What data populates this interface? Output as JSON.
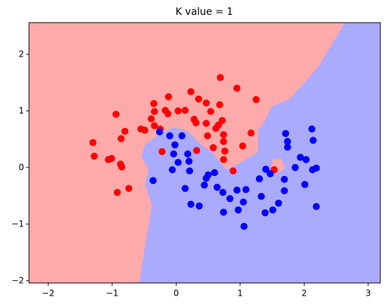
{
  "chart_data": {
    "type": "scatter",
    "title": "K value = 1",
    "xlim": [
      -2.3,
      3.19
    ],
    "ylim": [
      -2.04,
      2.56
    ],
    "xticks": [
      {
        "value": -2,
        "label": "−2"
      },
      {
        "value": -1,
        "label": "−1"
      },
      0,
      1,
      2,
      3
    ],
    "yticks": [
      {
        "value": -2,
        "label": "−2"
      },
      {
        "value": -1,
        "label": "−1"
      },
      0,
      1,
      2
    ],
    "grid": false,
    "series": [
      {
        "color": "#ff0000",
        "x": [
          -1.3,
          -1.28,
          -1.06,
          -1.01,
          -0.94,
          -0.87,
          -0.85,
          -0.74,
          -0.92,
          -0.8,
          -0.86,
          -0.55,
          -0.49,
          -0.39,
          -0.35,
          -0.34,
          -0.34,
          -0.25,
          -0.17,
          -0.13,
          -0.12,
          0.03,
          0.14,
          0.23,
          0.28,
          0.31,
          0.35,
          0.32,
          0.47,
          0.54,
          0.49,
          0.58,
          0.62,
          0.68,
          0.72,
          0.66,
          0.74,
          0.74,
          0.76,
          0.74,
          0.89,
          0.69,
          0.95,
          1.17,
          1.04,
          1.25,
          1.53,
          -0.22,
          0.47
        ],
        "y": [
          0.44,
          0.2,
          0.14,
          0.16,
          0.94,
          0.06,
          0.01,
          -0.37,
          -0.44,
          0.64,
          0.51,
          0.68,
          0.66,
          0.86,
          1.13,
          0.99,
          0.74,
          0.68,
          1.01,
          0.95,
          1.25,
          1.0,
          1.01,
          1.34,
          0.85,
          0.79,
          1.21,
          0.3,
          1.14,
          0.99,
          0.56,
          0.35,
          0.69,
          1.11,
          0.83,
          0.75,
          0.58,
          0.46,
          0.29,
          0.14,
          -0.06,
          1.59,
          1.4,
          0.61,
          0.38,
          1.2,
          -0.04,
          0.28,
          0.78
        ]
      },
      {
        "color": "#0000ff",
        "x": [
          -0.26,
          -0.02,
          -0.1,
          0.09,
          -0.04,
          -0.36,
          -0.06,
          0.03,
          0.18,
          0.2,
          0.21,
          0.14,
          0.23,
          0.36,
          0.44,
          0.47,
          0.5,
          0.6,
          0.64,
          0.73,
          0.74,
          0.84,
          0.95,
          0.97,
          1.05,
          1.06,
          1.09,
          1.3,
          1.33,
          1.39,
          1.51,
          1.4,
          1.47,
          1.6,
          1.69,
          1.69,
          1.71,
          1.74,
          1.74,
          1.86,
          1.94,
          2.03,
          2.01,
          2.12,
          2.14,
          2.13,
          2.19,
          2.19
        ],
        "y": [
          0.63,
          0.4,
          0.56,
          0.56,
          0.24,
          -0.23,
          -0.04,
          0.09,
          0.24,
          0.11,
          -0.06,
          -0.37,
          -0.65,
          -0.68,
          -0.31,
          -0.19,
          -0.13,
          -0.09,
          -0.35,
          -0.44,
          -0.79,
          -0.55,
          -0.4,
          -0.75,
          -0.61,
          -1.04,
          -0.39,
          -0.2,
          -0.51,
          -0.8,
          -0.75,
          -0.03,
          -0.11,
          -0.63,
          -0.21,
          -0.41,
          0.6,
          0.46,
          0.36,
          0.0,
          0.18,
          0.14,
          -0.3,
          0.68,
          0.48,
          -0.04,
          -0.01,
          -0.69
        ]
      }
    ]
  }
}
